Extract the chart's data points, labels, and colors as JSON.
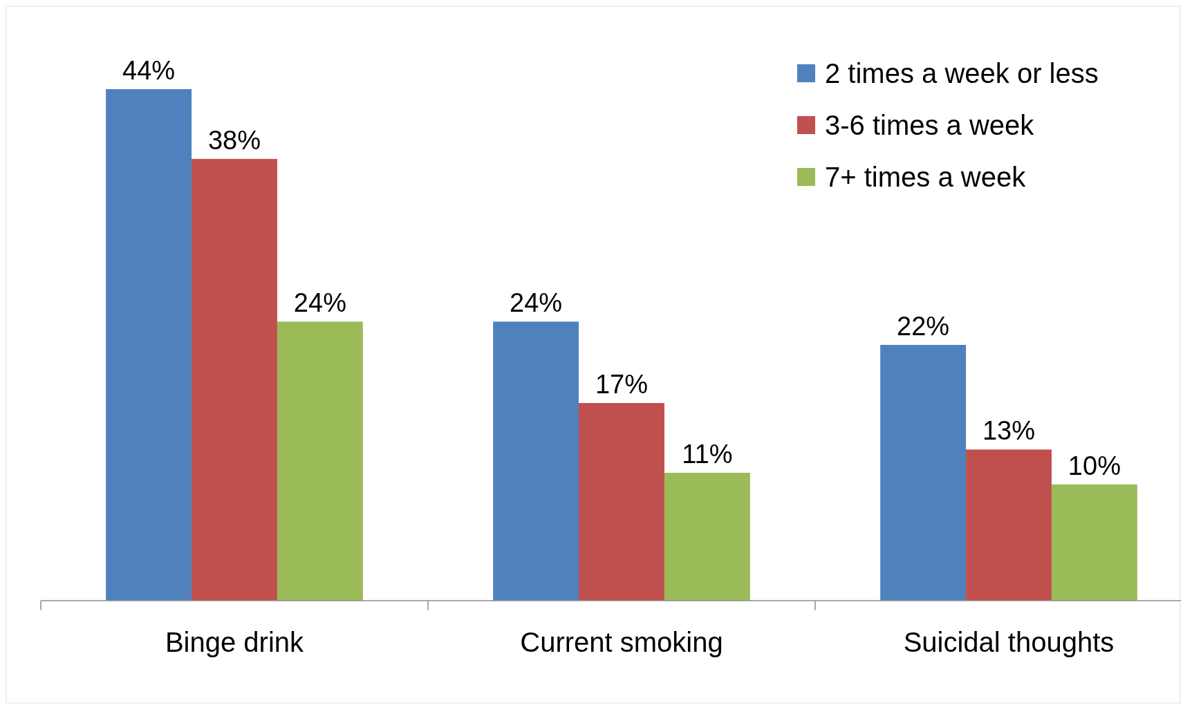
{
  "chart_data": {
    "type": "bar",
    "categories": [
      "Binge drink",
      "Current smoking",
      "Suicidal thoughts"
    ],
    "series": [
      {
        "name": "2 times a week or less",
        "color": "#4f81bd",
        "values": [
          44,
          24,
          22
        ],
        "value_labels": [
          "44%",
          "24%",
          "22%"
        ]
      },
      {
        "name": "3-6 times a week",
        "color": "#c0504d",
        "values": [
          38,
          17,
          13
        ],
        "value_labels": [
          "38%",
          "17%",
          "13%"
        ]
      },
      {
        "name": "7+ times a week",
        "color": "#9bbb59",
        "values": [
          24,
          11,
          10
        ],
        "value_labels": [
          "24%",
          "11%",
          "10%"
        ]
      }
    ],
    "legend": "top right",
    "grid": false
  }
}
